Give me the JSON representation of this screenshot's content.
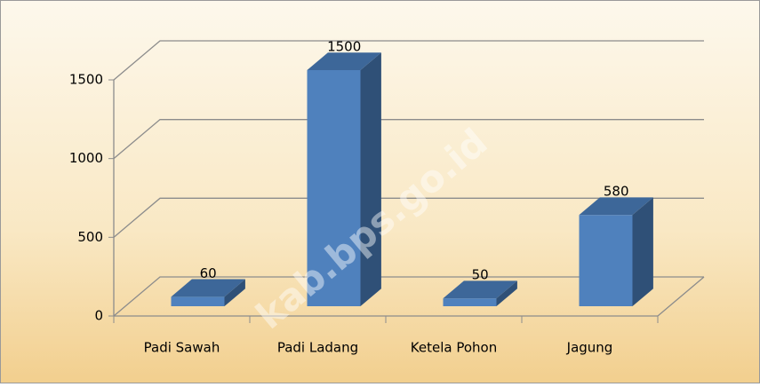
{
  "chart_data": {
    "type": "bar3d",
    "categories": [
      "Padi Sawah",
      "Padi Ladang",
      "Ketela Pohon",
      "Jagung"
    ],
    "values": [
      60,
      1500,
      50,
      580
    ],
    "color": "#4f81bd",
    "ylim": [
      0,
      1500
    ],
    "yticks": [
      0,
      500,
      1000,
      1500
    ],
    "grid": true,
    "watermark": "kab.bps.go.id"
  }
}
